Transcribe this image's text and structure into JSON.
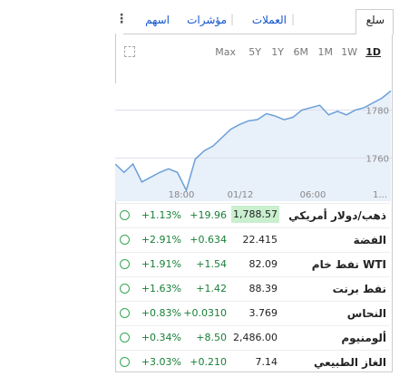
{
  "tabs": [
    "سلع",
    "العملات",
    "مؤشرات",
    "اسهم"
  ],
  "ranges": [
    "1D",
    "1W",
    "1M",
    "6M",
    "1Y",
    "5Y",
    "Max"
  ],
  "chart": {
    "values": [
      1757.5,
      1754,
      1757.5,
      1750,
      1752,
      1754,
      1755.5,
      1754,
      1746.5,
      1759.5,
      1763,
      1765,
      1768.5,
      1772,
      1774,
      1775.5,
      1776,
      1778.5,
      1777.5,
      1776,
      1777,
      1780,
      1781,
      1782,
      1778,
      1779.5,
      1778,
      1780,
      1781,
      1783,
      1785,
      1788
    ],
    "ylim": [
      1742,
      1790
    ],
    "yticks": [
      1760,
      1780
    ],
    "xlabels": [
      "18:00",
      "01/12",
      "06:00",
      "1..."
    ]
  },
  "table": {
    "rows": [
      [
        "ذهب/دولار أمريكي",
        "1,788.57",
        "+19.96",
        "+1.13%"
      ],
      [
        "الفضة",
        "22.415",
        "+0.634",
        "+2.91%"
      ],
      [
        "نفط خام WTI",
        "82.09",
        "+1.54",
        "+1.91%"
      ],
      [
        "نفط برنت",
        "88.39",
        "+1.42",
        "+1.63%"
      ],
      [
        "النحاس",
        "3.769",
        "+0.0310",
        "+0.83%"
      ],
      [
        "ألومنيوم",
        "2,486.00",
        "+8.50",
        "+0.34%"
      ],
      [
        "الغاز الطبيعي",
        "7.14",
        "+0.210",
        "+3.03%"
      ]
    ]
  }
}
